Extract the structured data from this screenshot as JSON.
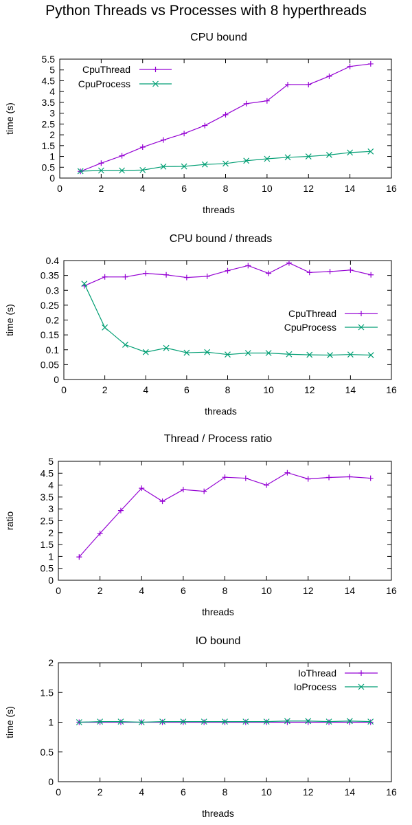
{
  "suptitle": "Python Threads vs Processes with 8 hyperthreads",
  "colors": {
    "purple": "#9400d3",
    "teal": "#009e73",
    "axis": "#000000"
  },
  "chart_data": [
    {
      "type": "line",
      "title": "CPU bound",
      "xlabel": "threads",
      "ylabel": "time (s)",
      "xlim": [
        0,
        16
      ],
      "ylim": [
        0,
        5.5
      ],
      "xticks": [
        0,
        2,
        4,
        6,
        8,
        10,
        12,
        14,
        16
      ],
      "yticks": [
        0,
        0.5,
        1,
        1.5,
        2,
        2.5,
        3,
        3.5,
        4,
        4.5,
        5,
        5.5
      ],
      "legend_position": "top-left",
      "grid": false,
      "x": [
        1,
        2,
        3,
        4,
        5,
        6,
        7,
        8,
        9,
        10,
        11,
        12,
        13,
        14,
        15
      ],
      "series": [
        {
          "name": "CpuThread",
          "color": "#9400d3",
          "marker": "plus",
          "values": [
            0.31,
            0.69,
            1.03,
            1.43,
            1.76,
            2.06,
            2.43,
            2.93,
            3.44,
            3.57,
            4.32,
            4.32,
            4.71,
            5.16,
            5.28
          ]
        },
        {
          "name": "CpuProcess",
          "color": "#009e73",
          "marker": "cross",
          "values": [
            0.32,
            0.35,
            0.35,
            0.37,
            0.53,
            0.54,
            0.63,
            0.67,
            0.8,
            0.89,
            0.96,
            1.0,
            1.07,
            1.18,
            1.23
          ]
        }
      ]
    },
    {
      "type": "line",
      "title": "CPU bound / threads",
      "xlabel": "threads",
      "ylabel": "time (s)",
      "xlim": [
        0,
        16
      ],
      "ylim": [
        0,
        0.4
      ],
      "xticks": [
        0,
        2,
        4,
        6,
        8,
        10,
        12,
        14,
        16
      ],
      "yticks": [
        0,
        0.05,
        0.1,
        0.15,
        0.2,
        0.25,
        0.3,
        0.35,
        0.4
      ],
      "legend_position": "middle-right",
      "grid": false,
      "x": [
        1,
        2,
        3,
        4,
        5,
        6,
        7,
        8,
        9,
        10,
        11,
        12,
        13,
        14,
        15
      ],
      "series": [
        {
          "name": "CpuThread",
          "color": "#9400d3",
          "marker": "plus",
          "values": [
            0.315,
            0.345,
            0.345,
            0.357,
            0.352,
            0.343,
            0.347,
            0.366,
            0.383,
            0.357,
            0.392,
            0.36,
            0.363,
            0.368,
            0.352
          ]
        },
        {
          "name": "CpuProcess",
          "color": "#009e73",
          "marker": "cross",
          "values": [
            0.322,
            0.175,
            0.117,
            0.092,
            0.106,
            0.09,
            0.092,
            0.084,
            0.089,
            0.089,
            0.085,
            0.083,
            0.082,
            0.084,
            0.082
          ]
        }
      ]
    },
    {
      "type": "line",
      "title": "Thread / Process ratio",
      "xlabel": "threads",
      "ylabel": "ratio",
      "xlim": [
        0,
        16
      ],
      "ylim": [
        0,
        5
      ],
      "xticks": [
        0,
        2,
        4,
        6,
        8,
        10,
        12,
        14,
        16
      ],
      "yticks": [
        0,
        0.5,
        1,
        1.5,
        2,
        2.5,
        3,
        3.5,
        4,
        4.5,
        5
      ],
      "legend_position": "none",
      "grid": false,
      "x": [
        1,
        2,
        3,
        4,
        5,
        6,
        7,
        8,
        9,
        10,
        11,
        12,
        13,
        14,
        15
      ],
      "series": [
        {
          "color": "#9400d3",
          "marker": "plus",
          "values": [
            0.98,
            1.97,
            2.93,
            3.87,
            3.32,
            3.81,
            3.74,
            4.33,
            4.29,
            4.0,
            4.52,
            4.26,
            4.32,
            4.35,
            4.29
          ]
        }
      ]
    },
    {
      "type": "line",
      "title": "IO bound",
      "xlabel": "threads",
      "ylabel": "time (s)",
      "xlim": [
        0,
        16
      ],
      "ylim": [
        0,
        2
      ],
      "xticks": [
        0,
        2,
        4,
        6,
        8,
        10,
        12,
        14,
        16
      ],
      "yticks": [
        0,
        0.5,
        1,
        1.5,
        2
      ],
      "legend_position": "top-right",
      "grid": false,
      "x": [
        1,
        2,
        3,
        4,
        5,
        6,
        7,
        8,
        9,
        10,
        11,
        12,
        13,
        14,
        15
      ],
      "series": [
        {
          "name": "IoThread",
          "color": "#9400d3",
          "marker": "plus",
          "values": [
            1.0,
            1.0,
            1.0,
            1.0,
            1.0,
            1.0,
            1.0,
            1.0,
            1.0,
            1.0,
            1.0,
            1.0,
            1.0,
            1.0,
            1.0
          ]
        },
        {
          "name": "IoProcess",
          "color": "#009e73",
          "marker": "cross",
          "values": [
            1.0,
            1.01,
            1.01,
            1.0,
            1.01,
            1.01,
            1.01,
            1.01,
            1.01,
            1.01,
            1.02,
            1.02,
            1.01,
            1.02,
            1.01
          ]
        }
      ]
    }
  ]
}
